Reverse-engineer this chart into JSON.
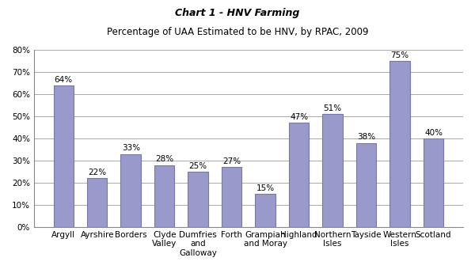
{
  "title_line1": "Chart 1 - HNV Farming",
  "title_line2": "Percentage of UAA Estimated to be HNV, by RPAC, 2009",
  "categories": [
    "Argyll",
    "Ayrshire",
    "Borders",
    "Clyde\nValley",
    "Dumfries\nand\nGalloway",
    "Forth",
    "Grampian\nand Moray",
    "Highland",
    "Northern\nIsles",
    "Tayside",
    "Western\nIsles",
    "Scotland"
  ],
  "values": [
    64,
    22,
    33,
    28,
    25,
    27,
    15,
    47,
    51,
    38,
    75,
    40
  ],
  "bar_color": "#9999cc",
  "bar_edge_color": "#7777aa",
  "ylim": [
    0,
    80
  ],
  "yticks": [
    0,
    10,
    20,
    30,
    40,
    50,
    60,
    70,
    80
  ],
  "grid_color": "#aaaaaa",
  "bg_color": "#ffffff",
  "title_fontsize": 9,
  "tick_fontsize": 7.5,
  "annot_fontsize": 7.5
}
